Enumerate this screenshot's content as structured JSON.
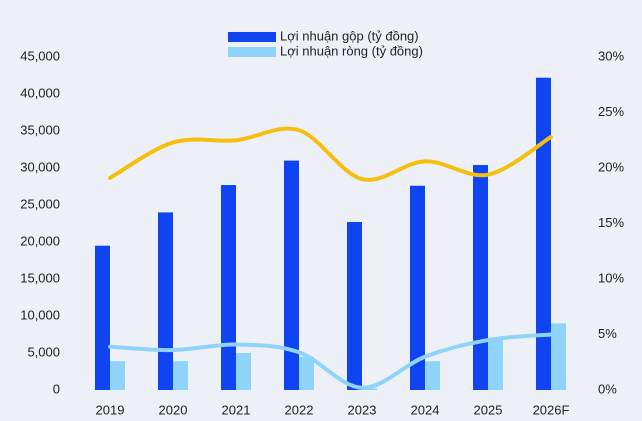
{
  "chart_data": {
    "type": "bar_line",
    "categories": [
      "2019",
      "2020",
      "2021",
      "2022",
      "2023",
      "2024",
      "2025",
      "2026F"
    ],
    "series": [
      {
        "name": "Lợi nhuận gộp (tỷ đồng)",
        "type": "bar",
        "color": "#0f44f0",
        "values": [
          19500,
          24000,
          27700,
          31000,
          22700,
          27600,
          30400,
          42200
        ]
      },
      {
        "name": "Lợi nhuận ròng (tỷ đồng)",
        "type": "bar",
        "color": "#8fd4f8",
        "values": [
          3900,
          3900,
          5000,
          4500,
          200,
          3900,
          7000,
          9000
        ]
      },
      {
        "type": "line",
        "axis": "y2",
        "color": "#f5bf0f",
        "values": [
          19.1,
          22.3,
          22.5,
          23.4,
          19.0,
          20.6,
          19.4,
          22.8
        ]
      },
      {
        "type": "line",
        "axis": "y2",
        "color": "#8fd4f8",
        "values": [
          3.9,
          3.6,
          4.1,
          3.4,
          0.2,
          3.0,
          4.5,
          5.0
        ]
      }
    ],
    "ylim": [
      0,
      45000
    ],
    "yticks": [
      0,
      {
        "value": 5000,
        "label": "5,000"
      },
      {
        "value": 10000,
        "label": "10,000"
      },
      {
        "value": 15000,
        "label": "15,000"
      },
      {
        "value": 20000,
        "label": "20,000"
      },
      {
        "value": 25000,
        "label": "25,000"
      },
      {
        "value": 30000,
        "label": "30,000"
      },
      {
        "value": 35000,
        "label": "35,000"
      },
      {
        "value": 40000,
        "label": "40,000"
      },
      {
        "value": 45000,
        "label": "45,000"
      }
    ],
    "y2lim": [
      0,
      30
    ],
    "y2ticks": [
      {
        "value": 0,
        "label": "0%"
      },
      {
        "value": 5,
        "label": "5%"
      },
      {
        "value": 10,
        "label": "10%"
      },
      {
        "value": 15,
        "label": "15%"
      },
      {
        "value": 20,
        "label": "20%"
      },
      {
        "value": 25,
        "label": "25%"
      },
      {
        "value": 30,
        "label": "30%"
      }
    ],
    "legend": "top"
  }
}
